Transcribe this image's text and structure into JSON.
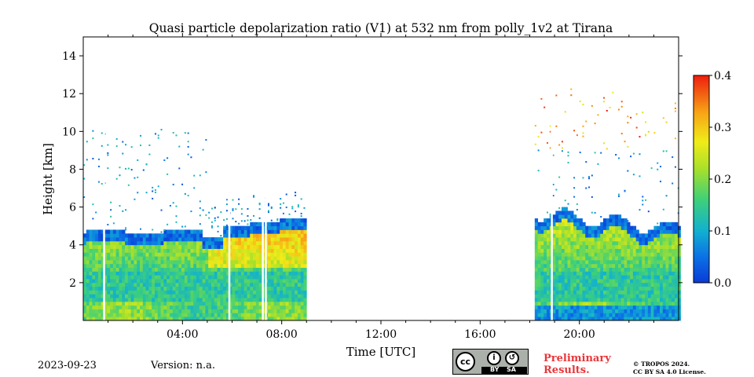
{
  "chart_data": {
    "type": "heatmap",
    "title": "Quasi particle depolarization ratio (V1) at 532 nm from polly_1v2 at Tirana",
    "xlabel": "Time [UTC]",
    "ylabel": "Height [km]",
    "xlim_hours": [
      0,
      24
    ],
    "ylim_km": [
      0,
      15
    ],
    "x_ticks": [
      {
        "value": 4,
        "label": "04:00"
      },
      {
        "value": 8,
        "label": "08:00"
      },
      {
        "value": 12,
        "label": "12:00"
      },
      {
        "value": 16,
        "label": "16:00"
      },
      {
        "value": 20,
        "label": "20:00"
      }
    ],
    "y_ticks": [
      {
        "value": 2,
        "label": "2"
      },
      {
        "value": 4,
        "label": "4"
      },
      {
        "value": 6,
        "label": "6"
      },
      {
        "value": 8,
        "label": "8"
      },
      {
        "value": 10,
        "label": "10"
      },
      {
        "value": 12,
        "label": "12"
      },
      {
        "value": 14,
        "label": "14"
      }
    ],
    "colorbar": {
      "range": [
        0.0,
        0.4
      ],
      "colormap": "jet",
      "ticks": [
        {
          "value": 0.0,
          "label": "0.0"
        },
        {
          "value": 0.1,
          "label": "0.1"
        },
        {
          "value": 0.2,
          "label": "0.2"
        },
        {
          "value": 0.3,
          "label": "0.3"
        },
        {
          "value": 0.4,
          "label": "0.4"
        }
      ]
    },
    "data_segments": [
      {
        "start_hour": 0.0,
        "end_hour": 9.0
      },
      {
        "start_hour": 18.2,
        "end_hour": 24.0
      }
    ],
    "grid": false
  },
  "footer": {
    "date": "2023-09-23",
    "version": "Version: n.a.",
    "license_badge": {
      "by": "BY",
      "sa": "SA",
      "cc": "cc"
    },
    "preliminary_line1": "Preliminary",
    "preliminary_line2": "Results.",
    "copyright_line1": "© TROPOS 2024.",
    "copyright_line2": "CC BY SA 4.0 License."
  },
  "colors": {
    "preliminary": "#e8363a",
    "badge": "#abb1aa"
  }
}
